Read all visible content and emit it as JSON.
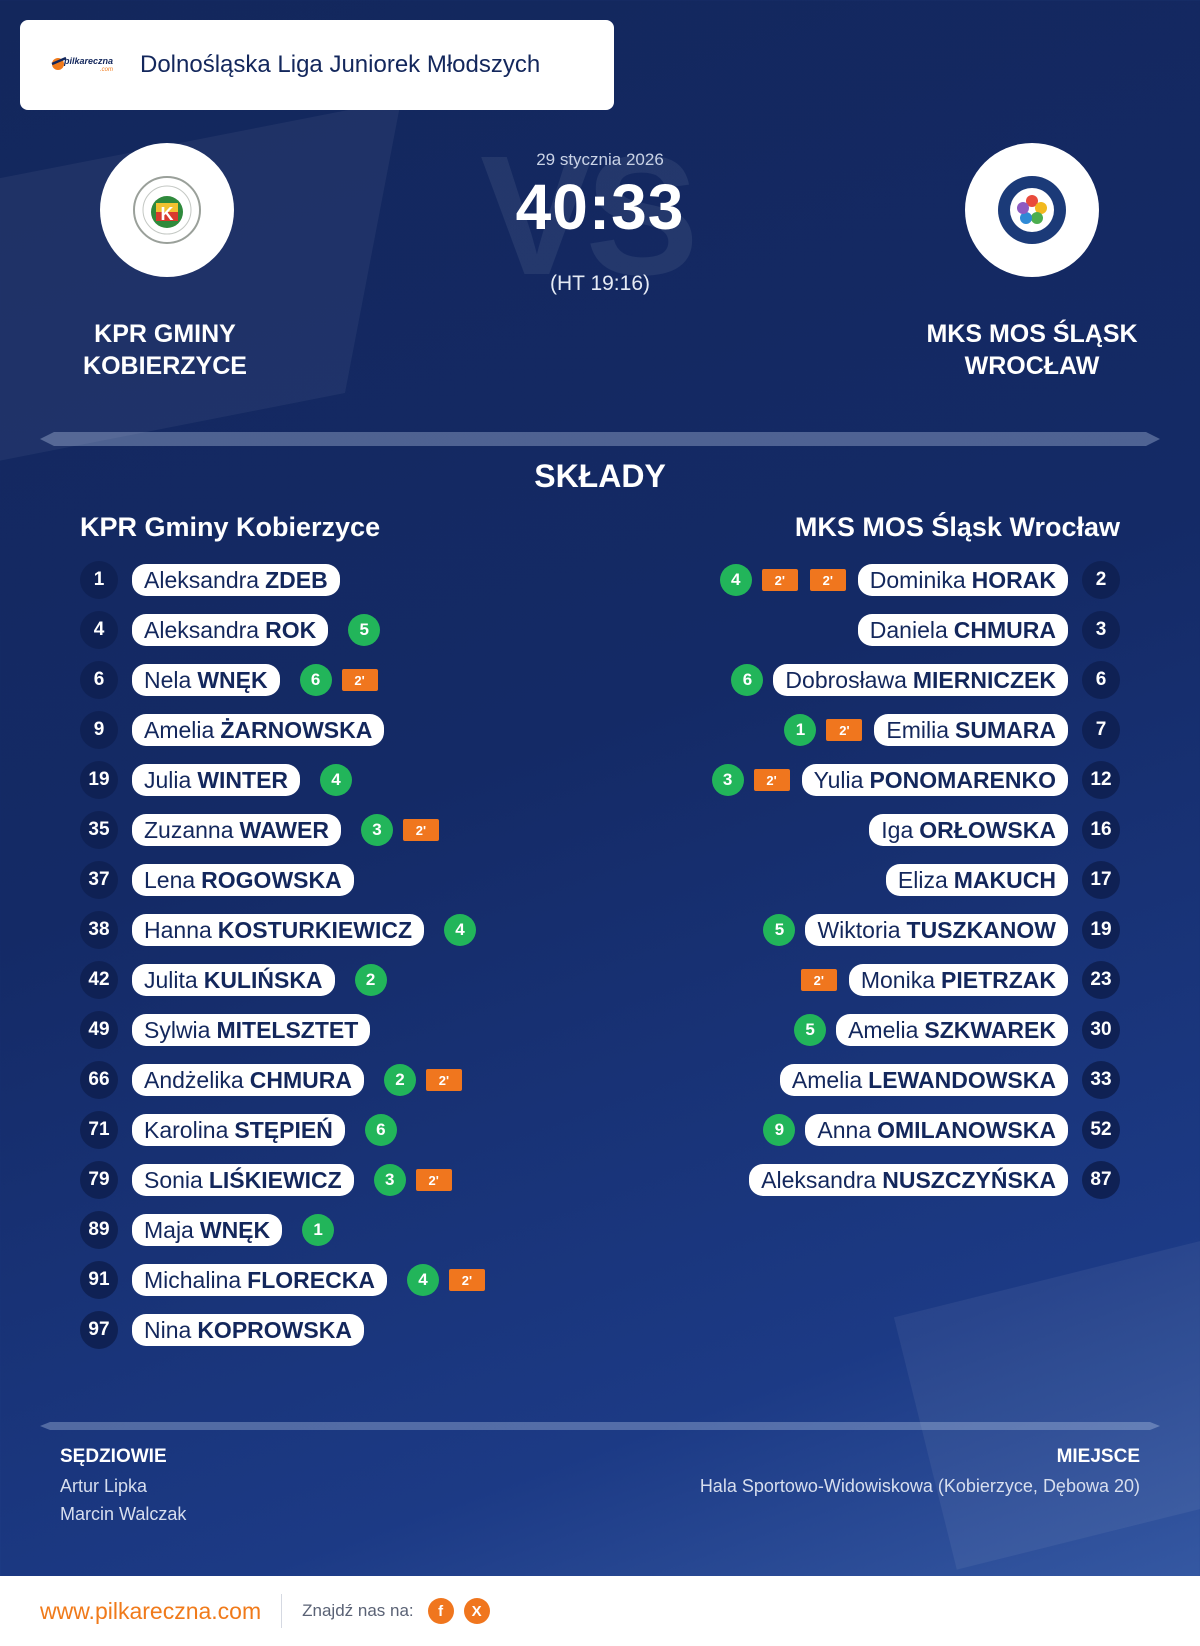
{
  "league": {
    "brand": "pilkareczna",
    "brand_suffix": ".com",
    "title": "Dolnośląska Liga Juniorek Młodszych"
  },
  "match": {
    "date": "29 stycznia 2026",
    "score": "40:33",
    "halftime": "(HT 19:16)",
    "vs_text": "VS"
  },
  "home": {
    "name": "KPR GMINY KOBIERZYCE",
    "roster_title": "KPR Gminy Kobierzyce",
    "players": [
      {
        "number": "1",
        "first": "Aleksandra",
        "last": "ZDEB",
        "goals": "",
        "susp": []
      },
      {
        "number": "4",
        "first": "Aleksandra",
        "last": "ROK",
        "goals": "5",
        "susp": []
      },
      {
        "number": "6",
        "first": "Nela",
        "last": "WNĘK",
        "goals": "6",
        "susp": [
          "2'"
        ]
      },
      {
        "number": "9",
        "first": "Amelia",
        "last": "ŻARNOWSKA",
        "goals": "",
        "susp": []
      },
      {
        "number": "19",
        "first": "Julia",
        "last": "WINTER",
        "goals": "4",
        "susp": []
      },
      {
        "number": "35",
        "first": "Zuzanna",
        "last": "WAWER",
        "goals": "3",
        "susp": [
          "2'"
        ]
      },
      {
        "number": "37",
        "first": "Lena",
        "last": "ROGOWSKA",
        "goals": "",
        "susp": []
      },
      {
        "number": "38",
        "first": "Hanna",
        "last": "KOSTURKIEWICZ",
        "goals": "4",
        "susp": []
      },
      {
        "number": "42",
        "first": "Julita",
        "last": "KULIŃSKA",
        "goals": "2",
        "susp": []
      },
      {
        "number": "49",
        "first": "Sylwia",
        "last": "MITELSZTET",
        "goals": "",
        "susp": []
      },
      {
        "number": "66",
        "first": "Andżelika",
        "last": "CHMURA",
        "goals": "2",
        "susp": [
          "2'"
        ]
      },
      {
        "number": "71",
        "first": "Karolina",
        "last": "STĘPIEŃ",
        "goals": "6",
        "susp": []
      },
      {
        "number": "79",
        "first": "Sonia",
        "last": "LIŚKIEWICZ",
        "goals": "3",
        "susp": [
          "2'"
        ]
      },
      {
        "number": "89",
        "first": "Maja",
        "last": "WNĘK",
        "goals": "1",
        "susp": []
      },
      {
        "number": "91",
        "first": "Michalina",
        "last": "FLORECKA",
        "goals": "4",
        "susp": [
          "2'"
        ]
      },
      {
        "number": "97",
        "first": "Nina",
        "last": "KOPROWSKA",
        "goals": "",
        "susp": []
      }
    ]
  },
  "away": {
    "name": "MKS MOS ŚLĄSK WROCŁAW",
    "roster_title": "MKS MOS Śląsk Wrocław",
    "players": [
      {
        "number": "2",
        "first": "Dominika",
        "last": "HORAK",
        "goals": "4",
        "susp": [
          "2'",
          "2'"
        ]
      },
      {
        "number": "3",
        "first": "Daniela",
        "last": "CHMURA",
        "goals": "",
        "susp": []
      },
      {
        "number": "6",
        "first": "Dobrosława",
        "last": "MIERNICZEK",
        "goals": "6",
        "susp": []
      },
      {
        "number": "7",
        "first": "Emilia",
        "last": "SUMARA",
        "goals": "1",
        "susp": [
          "2'"
        ]
      },
      {
        "number": "12",
        "first": "Yulia",
        "last": "PONOMARENKO",
        "goals": "3",
        "susp": [
          "2'"
        ]
      },
      {
        "number": "16",
        "first": "Iga",
        "last": "ORŁOWSKA",
        "goals": "",
        "susp": []
      },
      {
        "number": "17",
        "first": "Eliza",
        "last": "MAKUCH",
        "goals": "",
        "susp": []
      },
      {
        "number": "19",
        "first": "Wiktoria",
        "last": "TUSZKANOW",
        "goals": "5",
        "susp": []
      },
      {
        "number": "23",
        "first": "Monika",
        "last": "PIETRZAK",
        "goals": "",
        "susp": [
          "2'"
        ]
      },
      {
        "number": "30",
        "first": "Amelia",
        "last": "SZKWAREK",
        "goals": "5",
        "susp": []
      },
      {
        "number": "33",
        "first": "Amelia",
        "last": "LEWANDOWSKA",
        "goals": "",
        "susp": []
      },
      {
        "number": "52",
        "first": "Anna",
        "last": "OMILANOWSKA",
        "goals": "9",
        "susp": []
      },
      {
        "number": "87",
        "first": "Aleksandra",
        "last": "NUSZCZYŃSKA",
        "goals": "",
        "susp": []
      }
    ]
  },
  "lineups_title": "SKŁADY",
  "referees": {
    "label": "SĘDZIOWIE",
    "names": [
      "Artur Lipka",
      "Marcin Walczak"
    ]
  },
  "venue": {
    "label": "MIEJSCE",
    "text": "Hala Sportowo-Widowiskowa (Kobierzyce, Dębowa 20)"
  },
  "footer": {
    "url": "www.pilkareczna.com",
    "find_text": "Znajdź nas na:",
    "socials": [
      "f",
      "X"
    ]
  },
  "colors": {
    "navy": "#13275c",
    "goal_green": "#22b55a",
    "suspension_orange": "#f0761e"
  }
}
